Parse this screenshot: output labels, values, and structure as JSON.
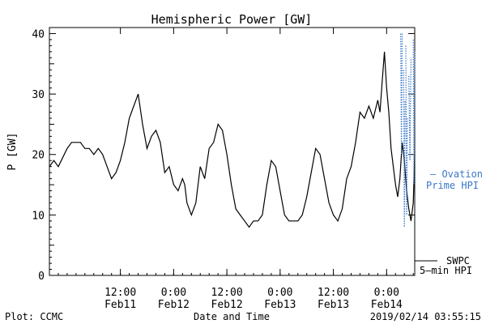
{
  "chart_data": {
    "type": "line",
    "title": "Hemispheric Power [GW]",
    "ylabel": "P [GW]",
    "xlabel": "Date and Time",
    "ylim": [
      0,
      41
    ],
    "xlim": [
      "2019-02-10 20:00",
      "2019-02-14 06:20"
    ],
    "yticks": [
      0,
      10,
      20,
      30,
      40
    ],
    "xticks": [
      {
        "time": "2019-02-11 12:00",
        "label1": "12:00",
        "label2": "Feb11"
      },
      {
        "time": "2019-02-12 00:00",
        "label1": "0:00",
        "label2": "Feb12"
      },
      {
        "time": "2019-02-12 12:00",
        "label1": "12:00",
        "label2": "Feb12"
      },
      {
        "time": "2019-02-13 00:00",
        "label1": "0:00",
        "label2": "Feb13"
      },
      {
        "time": "2019-02-13 12:00",
        "label1": "12:00",
        "label2": "Feb13"
      },
      {
        "time": "2019-02-14 00:00",
        "label1": "0:00",
        "label2": "Feb14"
      }
    ],
    "grid": false,
    "series": [
      {
        "name": "SWPC 5-min HPI",
        "color": "#000000",
        "style": "solid",
        "points": [
          [
            "2019-02-10 20:00",
            18
          ],
          [
            "2019-02-10 21:00",
            19
          ],
          [
            "2019-02-10 22:00",
            18
          ],
          [
            "2019-02-11 00:00",
            21
          ],
          [
            "2019-02-11 01:00",
            22
          ],
          [
            "2019-02-11 03:00",
            22
          ],
          [
            "2019-02-11 04:00",
            21
          ],
          [
            "2019-02-11 05:00",
            21
          ],
          [
            "2019-02-11 06:00",
            20
          ],
          [
            "2019-02-11 07:00",
            21
          ],
          [
            "2019-02-11 08:00",
            20
          ],
          [
            "2019-02-11 09:00",
            18
          ],
          [
            "2019-02-11 10:00",
            16
          ],
          [
            "2019-02-11 11:00",
            17
          ],
          [
            "2019-02-11 12:00",
            19
          ],
          [
            "2019-02-11 13:00",
            22
          ],
          [
            "2019-02-11 14:00",
            26
          ],
          [
            "2019-02-11 15:00",
            28
          ],
          [
            "2019-02-11 16:00",
            30
          ],
          [
            "2019-02-11 17:00",
            25
          ],
          [
            "2019-02-11 18:00",
            21
          ],
          [
            "2019-02-11 19:00",
            23
          ],
          [
            "2019-02-11 20:00",
            24
          ],
          [
            "2019-02-11 21:00",
            22
          ],
          [
            "2019-02-11 22:00",
            17
          ],
          [
            "2019-02-11 23:00",
            18
          ],
          [
            "2019-02-12 00:00",
            15
          ],
          [
            "2019-02-12 01:00",
            14
          ],
          [
            "2019-02-12 02:00",
            16
          ],
          [
            "2019-02-12 02:30",
            15
          ],
          [
            "2019-02-12 03:00",
            12
          ],
          [
            "2019-02-12 04:00",
            10
          ],
          [
            "2019-02-12 05:00",
            12
          ],
          [
            "2019-02-12 06:00",
            18
          ],
          [
            "2019-02-12 07:00",
            16
          ],
          [
            "2019-02-12 08:00",
            21
          ],
          [
            "2019-02-12 09:00",
            22
          ],
          [
            "2019-02-12 10:00",
            25
          ],
          [
            "2019-02-12 11:00",
            24
          ],
          [
            "2019-02-12 12:00",
            20
          ],
          [
            "2019-02-12 13:00",
            15
          ],
          [
            "2019-02-12 14:00",
            11
          ],
          [
            "2019-02-12 15:00",
            10
          ],
          [
            "2019-02-12 16:00",
            9
          ],
          [
            "2019-02-12 17:00",
            8
          ],
          [
            "2019-02-12 18:00",
            9
          ],
          [
            "2019-02-12 19:00",
            9
          ],
          [
            "2019-02-12 20:00",
            10
          ],
          [
            "2019-02-12 21:00",
            15
          ],
          [
            "2019-02-12 22:00",
            19
          ],
          [
            "2019-02-12 23:00",
            18
          ],
          [
            "2019-02-13 00:00",
            14
          ],
          [
            "2019-02-13 01:00",
            10
          ],
          [
            "2019-02-13 02:00",
            9
          ],
          [
            "2019-02-13 03:00",
            9
          ],
          [
            "2019-02-13 04:00",
            9
          ],
          [
            "2019-02-13 05:00",
            10
          ],
          [
            "2019-02-13 06:00",
            13
          ],
          [
            "2019-02-13 07:00",
            17
          ],
          [
            "2019-02-13 08:00",
            21
          ],
          [
            "2019-02-13 09:00",
            20
          ],
          [
            "2019-02-13 10:00",
            16
          ],
          [
            "2019-02-13 11:00",
            12
          ],
          [
            "2019-02-13 12:00",
            10
          ],
          [
            "2019-02-13 13:00",
            9
          ],
          [
            "2019-02-13 14:00",
            11
          ],
          [
            "2019-02-13 15:00",
            16
          ],
          [
            "2019-02-13 16:00",
            18
          ],
          [
            "2019-02-13 17:00",
            22
          ],
          [
            "2019-02-13 18:00",
            27
          ],
          [
            "2019-02-13 19:00",
            26
          ],
          [
            "2019-02-13 20:00",
            28
          ],
          [
            "2019-02-13 21:00",
            26
          ],
          [
            "2019-02-13 22:00",
            29
          ],
          [
            "2019-02-13 22:30",
            27
          ],
          [
            "2019-02-13 23:00",
            32
          ],
          [
            "2019-02-13 23:30",
            37
          ],
          [
            "2019-02-14 00:00",
            31
          ],
          [
            "2019-02-14 00:30",
            27
          ],
          [
            "2019-02-14 01:00",
            21
          ],
          [
            "2019-02-14 02:00",
            15
          ],
          [
            "2019-02-14 02:30",
            13
          ],
          [
            "2019-02-14 03:00",
            16
          ],
          [
            "2019-02-14 03:30",
            22
          ],
          [
            "2019-02-14 04:00",
            19
          ],
          [
            "2019-02-14 04:30",
            14
          ],
          [
            "2019-02-14 05:00",
            11
          ],
          [
            "2019-02-14 05:30",
            9
          ],
          [
            "2019-02-14 06:00",
            12
          ],
          [
            "2019-02-14 06:20",
            20
          ]
        ]
      },
      {
        "name": "Ovation Prime HPI",
        "color": "#3a78c8",
        "style": "dotted",
        "segments": [
          [
            [
              "2019-02-14 03:10",
              40
            ],
            [
              "2019-02-14 03:20",
              20
            ],
            [
              "2019-02-14 03:30",
              40
            ]
          ],
          [
            [
              "2019-02-14 03:50",
              34
            ],
            [
              "2019-02-14 04:00",
              8
            ],
            [
              "2019-02-14 04:10",
              29
            ]
          ],
          [
            [
              "2019-02-14 04:20",
              38
            ],
            [
              "2019-02-14 04:30",
              10
            ],
            [
              "2019-02-14 04:40",
              26
            ]
          ],
          [
            [
              "2019-02-14 05:00",
              33
            ],
            [
              "2019-02-14 05:15",
              19
            ],
            [
              "2019-02-14 05:30",
              36
            ]
          ],
          [
            [
              "2019-02-14 06:00",
              39
            ],
            [
              "2019-02-14 06:10",
              15
            ],
            [
              "2019-02-14 06:20",
              37
            ]
          ]
        ]
      }
    ],
    "legend": [
      {
        "label": "— Ovation",
        "color": "#3a78c8"
      },
      {
        "label": "Prime HPI",
        "color": "#3a78c8"
      },
      {
        "label": "SWPC",
        "color": "#000000"
      },
      {
        "label": "5—min HPI",
        "color": "#000000"
      }
    ],
    "footer": {
      "left": "Plot: CCMC",
      "center": "Date and Time",
      "right": "2019/02/14 03:55:15"
    }
  }
}
